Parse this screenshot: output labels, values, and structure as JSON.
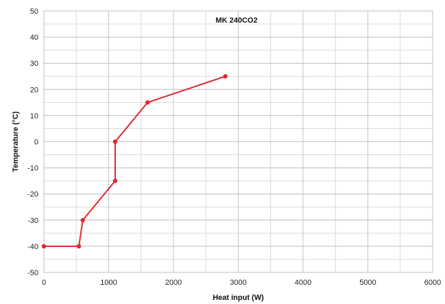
{
  "chart_data": {
    "type": "line",
    "title": "MK 240CO2",
    "xlabel": "Heat input (W)",
    "ylabel": "Temperature (°C)",
    "xlim": [
      0,
      6000
    ],
    "ylim": [
      -50,
      50
    ],
    "x_ticks": [
      0,
      1000,
      2000,
      3000,
      4000,
      5000,
      6000
    ],
    "y_ticks": [
      -50,
      -40,
      -30,
      -20,
      -10,
      0,
      10,
      20,
      30,
      40,
      50
    ],
    "x_ticks_labels": [
      "0",
      "1000",
      "2000",
      "3000",
      "4000",
      "5000",
      "6000"
    ],
    "y_ticks_labels": [
      "-50",
      "-40",
      "-30",
      "-20",
      "-10",
      "0",
      "10",
      "20",
      "30",
      "40",
      "50"
    ],
    "grid": true,
    "series": [
      {
        "color": "#e3262e",
        "x": [
          0,
          540,
          600,
          1100,
          1100,
          1600,
          2800
        ],
        "y": [
          -40,
          -40,
          -30,
          -15,
          0,
          15,
          25
        ]
      }
    ]
  }
}
